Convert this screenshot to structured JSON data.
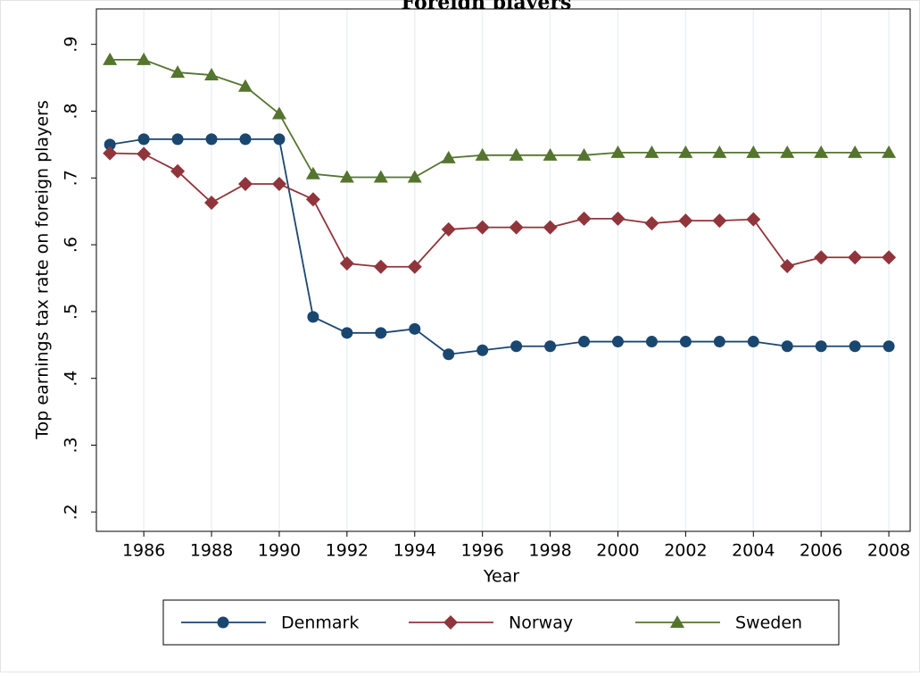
{
  "chart_data": {
    "type": "line",
    "title": "Foreign players",
    "x_label": "Year",
    "y_label": "Top earnings tax rate on foreign players",
    "x": [
      1985,
      1986,
      1987,
      1988,
      1989,
      1990,
      1991,
      1992,
      1993,
      1994,
      1995,
      1996,
      1997,
      1998,
      1999,
      2000,
      2001,
      2002,
      2003,
      2004,
      2005,
      2006,
      2007,
      2008
    ],
    "series": [
      {
        "name": "Denmark",
        "color": "#1a476f",
        "marker": "circle",
        "values": [
          0.75,
          0.758,
          0.758,
          0.758,
          0.758,
          0.758,
          0.492,
          0.468,
          0.468,
          0.474,
          0.436,
          0.442,
          0.448,
          0.448,
          0.455,
          0.455,
          0.455,
          0.455,
          0.455,
          0.455,
          0.448,
          0.448,
          0.448,
          0.448
        ]
      },
      {
        "name": "Norway",
        "color": "#90353b",
        "marker": "diamond",
        "values": [
          0.737,
          0.736,
          0.71,
          0.663,
          0.691,
          0.691,
          0.668,
          0.572,
          0.567,
          0.567,
          0.623,
          0.626,
          0.626,
          0.626,
          0.639,
          0.639,
          0.632,
          0.636,
          0.636,
          0.638,
          0.568,
          0.581,
          0.581,
          0.581
        ]
      },
      {
        "name": "Sweden",
        "color": "#55752f",
        "marker": "triangle",
        "values": [
          0.877,
          0.877,
          0.858,
          0.854,
          0.837,
          0.796,
          0.706,
          0.701,
          0.701,
          0.701,
          0.73,
          0.734,
          0.734,
          0.734,
          0.734,
          0.738,
          0.738,
          0.738,
          0.738,
          0.738,
          0.738,
          0.738,
          0.738,
          0.738
        ]
      }
    ],
    "xlim": [
      1984.6,
      2008.63
    ],
    "xticks": [
      1986,
      1988,
      1990,
      1992,
      1994,
      1996,
      1998,
      2000,
      2002,
      2004,
      2006,
      2008
    ],
    "ylim": [
      0.171,
      0.953
    ],
    "yticks": [
      {
        "value": 0.2,
        "label": ".2"
      },
      {
        "value": 0.3,
        "label": ".3"
      },
      {
        "value": 0.4,
        "label": ".4"
      },
      {
        "value": 0.5,
        "label": ".5"
      },
      {
        "value": 0.6,
        "label": ".6"
      },
      {
        "value": 0.7,
        "label": ".7"
      },
      {
        "value": 0.8,
        "label": ".8"
      },
      {
        "value": 0.9,
        "label": ".9"
      }
    ],
    "grid": "x",
    "legend": "bottom"
  }
}
